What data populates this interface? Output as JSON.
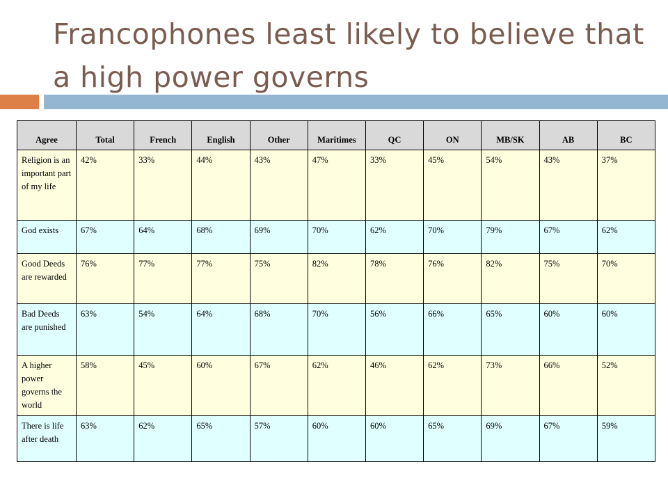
{
  "title": "Francophones least likely to believe that a high power governs",
  "table": {
    "headers": [
      "Agree",
      "Total",
      "French",
      "English",
      "Other",
      "Maritimes",
      "QC",
      "ON",
      "MB/SK",
      "AB",
      "BC"
    ],
    "rows": [
      {
        "label": "Religion is an important part of my life",
        "values": [
          "42%",
          "33%",
          "44%",
          "43%",
          "47%",
          "33%",
          "45%",
          "54%",
          "43%",
          "37%"
        ]
      },
      {
        "label": "God exists",
        "values": [
          "67%",
          "64%",
          "68%",
          "69%",
          "70%",
          "62%",
          "70%",
          "79%",
          "67%",
          "62%"
        ]
      },
      {
        "label": "Good Deeds are rewarded",
        "values": [
          "76%",
          "77%",
          "77%",
          "75%",
          "82%",
          "78%",
          "76%",
          "82%",
          "75%",
          "70%"
        ]
      },
      {
        "label": "Bad Deeds are punished",
        "values": [
          "63%",
          "54%",
          "64%",
          "68%",
          "70%",
          "56%",
          "66%",
          "65%",
          "60%",
          "60%"
        ]
      },
      {
        "label": "A higher power governs the world",
        "values": [
          "58%",
          "45%",
          "60%",
          "67%",
          "62%",
          "46%",
          "62%",
          "73%",
          "66%",
          "52%"
        ]
      },
      {
        "label": "There is life after death",
        "values": [
          "63%",
          "62%",
          "65%",
          "57%",
          "60%",
          "60%",
          "65%",
          "69%",
          "67%",
          "59%"
        ]
      }
    ]
  },
  "colors": {
    "title": "#7a5c50",
    "accent_orange": "#dd8047",
    "accent_blue": "#94b6d2",
    "header_bg": "#d9d9d9",
    "row_yellow": "#ffffe0",
    "row_cyan": "#e0ffff"
  }
}
